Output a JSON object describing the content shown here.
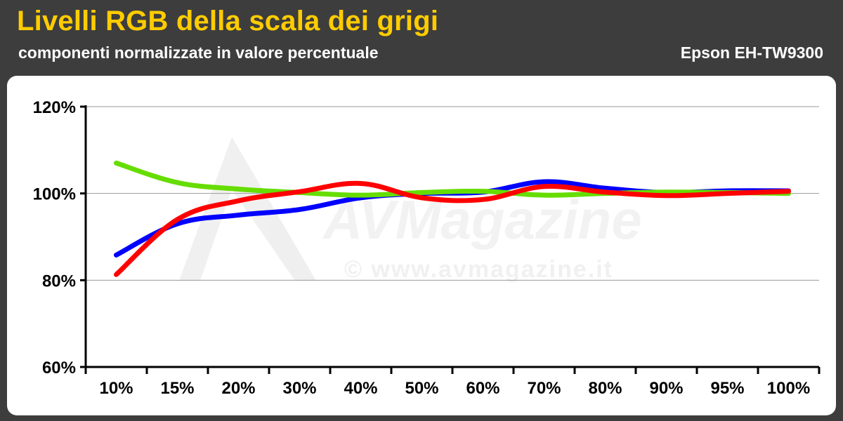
{
  "header": {
    "title": "Livelli RGB della scala dei grigi",
    "subtitle": "componenti normalizzate in valore percentuale",
    "model": "Epson EH-TW9300"
  },
  "watermark": {
    "logo": "AVMagazine",
    "url": "© www.avmagazine.it"
  },
  "chart_data": {
    "type": "line",
    "title": "Livelli RGB della scala dei grigi",
    "subtitle": "componenti normalizzate in valore percentuale",
    "categories": [
      "10%",
      "15%",
      "20%",
      "30%",
      "40%",
      "50%",
      "60%",
      "70%",
      "80%",
      "90%",
      "95%",
      "100%"
    ],
    "y_ticks": [
      "60%",
      "80%",
      "100%",
      "120%"
    ],
    "ylim": [
      60,
      120
    ],
    "grid": true,
    "legend": "none",
    "series": [
      {
        "color": "#0000ff",
        "values": [
          85.8,
          93.0,
          95.0,
          96.3,
          99.0,
          100.0,
          100.3,
          102.7,
          101.2,
          100.2,
          100.6,
          100.6
        ]
      },
      {
        "color": "#66dd00",
        "values": [
          107.0,
          102.5,
          101.0,
          100.2,
          99.6,
          100.2,
          100.5,
          99.6,
          100.0,
          100.3,
          100.2,
          100.0
        ]
      },
      {
        "color": "#ff0000",
        "values": [
          81.3,
          94.0,
          98.3,
          100.4,
          102.3,
          99.0,
          98.6,
          101.6,
          100.3,
          99.5,
          100.0,
          100.5
        ]
      }
    ]
  }
}
